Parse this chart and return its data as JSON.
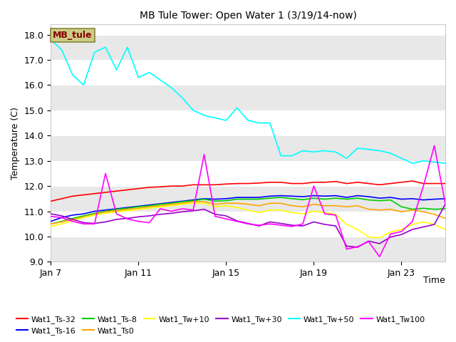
{
  "title": "MB Tule Tower: Open Water 1 (3/19/14-now)",
  "xlabel": "Time",
  "ylabel": "Temperature (C)",
  "ylim": [
    9.0,
    18.4
  ],
  "yticks": [
    9.0,
    10.0,
    11.0,
    12.0,
    13.0,
    14.0,
    15.0,
    16.0,
    17.0,
    18.0
  ],
  "fig_bg": "#ffffff",
  "plot_bg_light": "#ffffff",
  "plot_bg_dark": "#e8e8e8",
  "series": {
    "Wat1_Ts-32": {
      "color": "red",
      "zorder": 3
    },
    "Wat1_Ts-16": {
      "color": "blue",
      "zorder": 3
    },
    "Wat1_Ts-8": {
      "color": "#00cc00",
      "zorder": 3
    },
    "Wat1_Ts0": {
      "color": "orange",
      "zorder": 3
    },
    "Wat1_Tw+10": {
      "color": "yellow",
      "zorder": 3
    },
    "Wat1_Tw+30": {
      "color": "#9900cc",
      "zorder": 3
    },
    "Wat1_Tw+50": {
      "color": "cyan",
      "zorder": 4
    },
    "Wat1_Tw100": {
      "color": "magenta",
      "zorder": 5
    }
  },
  "x": [
    0,
    0.5,
    1,
    1.5,
    2,
    2.5,
    3,
    3.5,
    4,
    4.5,
    5,
    5.5,
    6,
    6.5,
    7,
    7.5,
    8,
    8.5,
    9,
    9.5,
    10,
    10.5,
    11,
    11.5,
    12,
    12.5,
    13,
    13.5,
    14,
    14.5,
    15,
    15.5,
    16,
    16.5,
    17,
    17.5,
    18
  ],
  "y_Ts32": [
    11.4,
    11.5,
    11.6,
    11.65,
    11.7,
    11.75,
    11.8,
    11.85,
    11.9,
    11.95,
    11.97,
    12.0,
    12.0,
    12.05,
    12.05,
    12.05,
    12.08,
    12.1,
    12.1,
    12.12,
    12.15,
    12.15,
    12.1,
    12.1,
    12.15,
    12.15,
    12.18,
    12.1,
    12.15,
    12.1,
    12.05,
    12.1,
    12.15,
    12.2,
    12.1,
    12.1,
    12.1
  ],
  "y_Ts16": [
    10.6,
    10.75,
    10.85,
    10.9,
    11.0,
    11.05,
    11.1,
    11.15,
    11.2,
    11.25,
    11.3,
    11.35,
    11.4,
    11.45,
    11.5,
    11.48,
    11.5,
    11.55,
    11.55,
    11.55,
    11.6,
    11.62,
    11.6,
    11.58,
    11.62,
    11.6,
    11.62,
    11.55,
    11.62,
    11.58,
    11.52,
    11.55,
    11.48,
    11.5,
    11.45,
    11.48,
    11.5
  ],
  "y_Ts8": [
    10.5,
    10.6,
    10.72,
    10.82,
    10.92,
    11.0,
    11.08,
    11.12,
    11.18,
    11.22,
    11.28,
    11.32,
    11.38,
    11.42,
    11.48,
    11.4,
    11.42,
    11.48,
    11.48,
    11.48,
    11.52,
    11.55,
    11.5,
    11.46,
    11.52,
    11.48,
    11.52,
    11.48,
    11.52,
    11.45,
    11.42,
    11.45,
    11.18,
    11.08,
    11.12,
    11.08,
    11.1
  ],
  "y_Ts0": [
    10.5,
    10.58,
    10.68,
    10.78,
    10.88,
    10.98,
    11.02,
    11.08,
    11.12,
    11.18,
    11.22,
    11.28,
    11.32,
    11.38,
    11.38,
    11.28,
    11.32,
    11.32,
    11.28,
    11.22,
    11.32,
    11.32,
    11.22,
    11.18,
    11.28,
    11.22,
    11.22,
    11.18,
    11.22,
    11.08,
    11.05,
    11.08,
    10.98,
    11.05,
    10.98,
    10.88,
    10.72
  ],
  "y_Tw10": [
    10.4,
    10.5,
    10.62,
    10.75,
    10.85,
    10.92,
    10.98,
    11.02,
    11.08,
    11.12,
    11.18,
    11.22,
    11.28,
    11.32,
    11.32,
    11.18,
    11.22,
    11.15,
    11.05,
    10.95,
    11.05,
    11.05,
    10.95,
    10.9,
    11.0,
    10.95,
    10.88,
    10.48,
    10.28,
    9.98,
    9.95,
    10.18,
    10.28,
    10.48,
    10.58,
    10.48,
    10.28
  ],
  "y_Tw30": [
    10.9,
    10.82,
    10.68,
    10.55,
    10.52,
    10.58,
    10.68,
    10.72,
    10.78,
    10.82,
    10.88,
    10.92,
    10.98,
    11.02,
    11.08,
    10.88,
    10.82,
    10.62,
    10.52,
    10.42,
    10.58,
    10.52,
    10.45,
    10.42,
    10.58,
    10.48,
    10.42,
    9.62,
    9.58,
    9.82,
    9.72,
    9.98,
    10.08,
    10.28,
    10.38,
    10.48,
    11.28
  ],
  "y_Tw50": [
    17.8,
    17.4,
    16.4,
    16.0,
    17.3,
    17.5,
    16.6,
    17.5,
    16.3,
    16.5,
    16.2,
    15.9,
    15.5,
    15.0,
    14.8,
    14.7,
    14.6,
    15.1,
    14.6,
    14.5,
    14.5,
    13.2,
    13.2,
    13.4,
    13.35,
    13.4,
    13.35,
    13.1,
    13.5,
    13.45,
    13.4,
    13.3,
    13.1,
    12.9,
    13.0,
    12.95,
    12.9
  ],
  "y_Tw100": [
    10.8,
    10.75,
    10.6,
    10.5,
    10.5,
    12.5,
    10.9,
    10.7,
    10.6,
    10.55,
    11.1,
    11.0,
    11.1,
    11.05,
    13.25,
    10.8,
    10.7,
    10.6,
    10.5,
    10.45,
    10.5,
    10.45,
    10.4,
    10.5,
    12.0,
    10.9,
    10.85,
    9.5,
    9.6,
    9.8,
    9.2,
    10.1,
    10.2,
    10.6,
    12.0,
    13.6,
    11.3
  ],
  "xtick_positions": [
    0,
    4,
    8,
    12,
    16
  ],
  "xtick_labels": [
    "Jan 7",
    "Jan 11",
    "Jan 15",
    "Jan 19",
    "Jan 23"
  ],
  "legend_label": "MB_tule",
  "legend_box_facecolor": "#cccc88",
  "legend_box_edgecolor": "#888833",
  "legend_text_color": "#880000",
  "legend_entries_row1": [
    "Wat1_Ts-32",
    "Wat1_Ts-16",
    "Wat1_Ts-8",
    "Wat1_Ts0",
    "Wat1_Tw+10",
    "Wat1_Tw+30"
  ],
  "legend_colors_row1": [
    "red",
    "blue",
    "#00cc00",
    "orange",
    "yellow",
    "#9900cc"
  ],
  "legend_entries_row2": [
    "Wat1_Tw+50",
    "Wat1_Tw100"
  ],
  "legend_colors_row2": [
    "cyan",
    "magenta"
  ]
}
